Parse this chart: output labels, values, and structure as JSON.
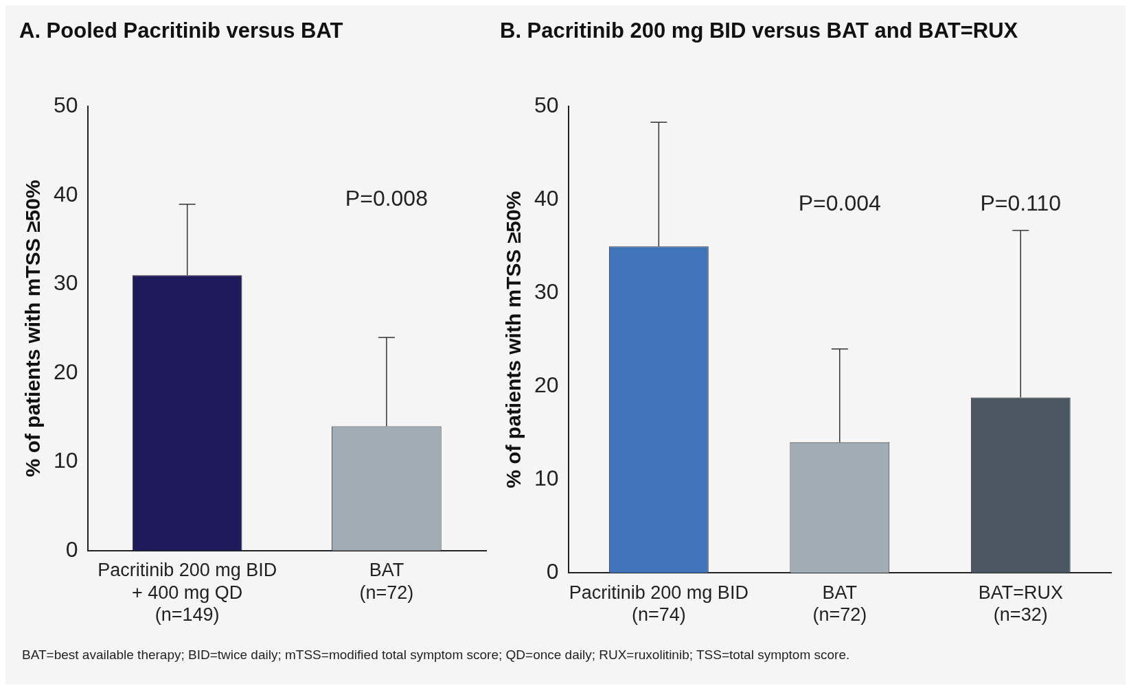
{
  "chart_data": [
    {
      "type": "bar",
      "title": "A. Pooled Pacritinib versus BAT",
      "ylabel": "% of patients with mTSS ≥50%",
      "categories": [
        "Pacritinib 200 mg BID\n+ 400 mg QD\n(n=149)",
        "BAT\n(n=72)"
      ],
      "values": [
        31,
        14
      ],
      "colors": [
        "#1f1a5c",
        "#a2acb4"
      ],
      "errors": [
        [
          31,
          39
        ],
        [
          14,
          24
        ]
      ],
      "ylim": [
        0,
        50
      ],
      "yticks": [
        0,
        10,
        20,
        30,
        40,
        50
      ],
      "grid": false,
      "legend": false,
      "annotations": [
        "P=0.008",
        "BAT=best available therapy; BID=twice daily; mTSS=modified total symptom score; QD=once daily; RUX=ruxolitinib; TSS=total symptom score."
      ]
    },
    {
      "type": "bar",
      "title": "B. Pacritinib 200 mg BID versus BAT and BAT=RUX",
      "ylabel": "% of patients with mTSS ≥50%",
      "categories": [
        "Pacritinib 200 mg BID\n(n=74)",
        "BAT\n(n=72)",
        "BAT=RUX\n(n=32)"
      ],
      "values": [
        35,
        14,
        18.8
      ],
      "colors": [
        "#3f74bb",
        "#a2acb4",
        "#4b5662"
      ],
      "errors": [
        [
          35,
          48.3
        ],
        [
          14,
          24
        ],
        [
          18.8,
          36.7
        ]
      ],
      "ylim": [
        0,
        50
      ],
      "yticks": [
        0,
        10,
        20,
        30,
        40,
        50
      ],
      "grid": false,
      "legend": false,
      "annotations": [
        "P=0.004",
        "P=0.110"
      ]
    }
  ]
}
